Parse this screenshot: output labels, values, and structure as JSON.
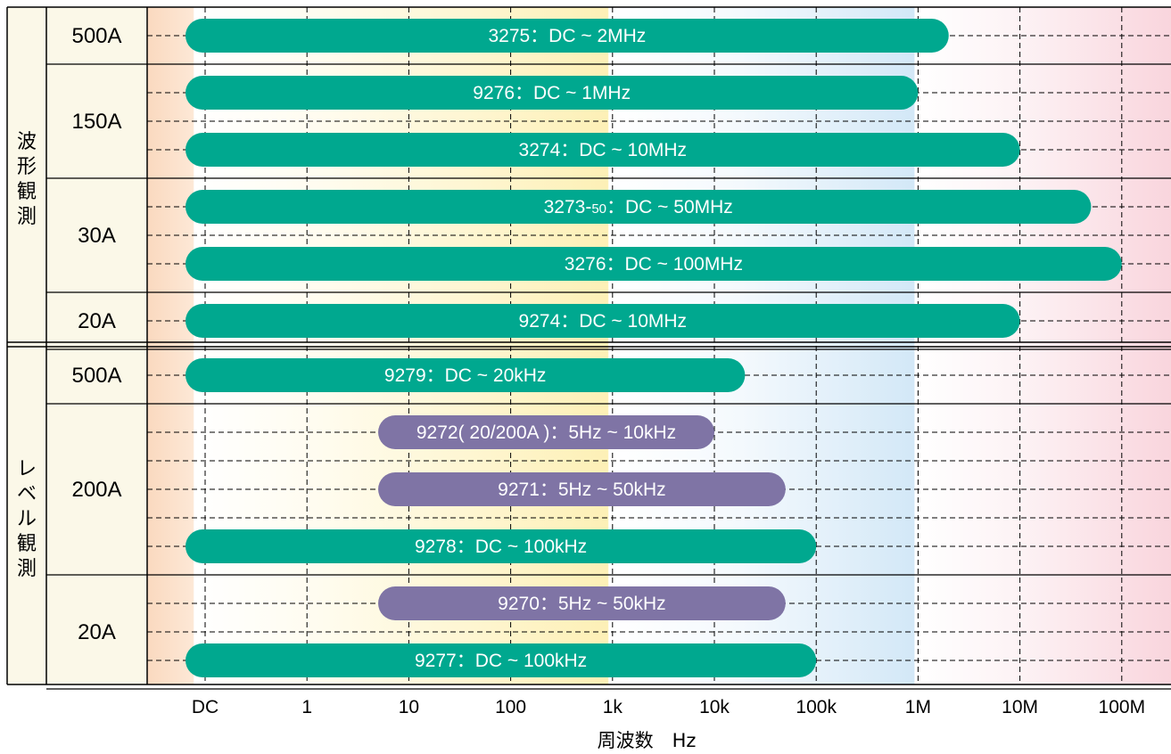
{
  "chart_data": {
    "type": "range-bar",
    "xlabel": "周波数　Hz",
    "xscale": "log",
    "x_ticks": [
      "DC",
      "1",
      "10",
      "100",
      "1k",
      "10k",
      "100k",
      "1M",
      "10M",
      "100M"
    ],
    "grid": true,
    "colors": {
      "dc_coupled": "#00a88f",
      "ac_coupled": "#7f74a5"
    },
    "groups": [
      {
        "name": "波形観測",
        "rows": [
          {
            "current": "500A",
            "bars": [
              {
                "label": "3275：DC ~ 2MHz",
                "low": "DC",
                "high": 2000000,
                "kind": "dc_coupled"
              }
            ]
          },
          {
            "current": "150A",
            "bars": [
              {
                "label": "9276：DC ~ 1MHz",
                "low": "DC",
                "high": 1000000,
                "kind": "dc_coupled"
              },
              {
                "label": "3274：DC ~ 10MHz",
                "low": "DC",
                "high": 10000000,
                "kind": "dc_coupled"
              }
            ]
          },
          {
            "current": "30A",
            "bars": [
              {
                "label": "3273-",
                "label_sub": "50",
                "label_rest": "：DC ~ 50MHz",
                "low": "DC",
                "high": 50000000,
                "kind": "dc_coupled"
              },
              {
                "label": "3276：DC ~ 100MHz",
                "low": "DC",
                "high": 100000000,
                "kind": "dc_coupled"
              }
            ]
          },
          {
            "current": "20A",
            "bars": [
              {
                "label": "9274：DC ~ 10MHz",
                "low": "DC",
                "high": 10000000,
                "kind": "dc_coupled"
              }
            ]
          }
        ]
      },
      {
        "name": "レベル観測",
        "rows": [
          {
            "current": "500A",
            "bars": [
              {
                "label": "9279：DC ~ 20kHz",
                "low": "DC",
                "high": 20000,
                "kind": "dc_coupled"
              }
            ]
          },
          {
            "current": "200A",
            "bars": [
              {
                "label": "9272( 20/200A )：5Hz ~ 10kHz",
                "low": 5,
                "high": 10000,
                "kind": "ac_coupled"
              },
              {
                "label": "9271：5Hz ~ 50kHz",
                "low": 5,
                "high": 50000,
                "kind": "ac_coupled"
              },
              {
                "label": "9278：DC ~ 100kHz",
                "low": "DC",
                "high": 100000,
                "kind": "dc_coupled"
              }
            ]
          },
          {
            "current": "20A",
            "bars": [
              {
                "label": "9270：5Hz ~ 50kHz",
                "low": 5,
                "high": 50000,
                "kind": "ac_coupled"
              },
              {
                "label": "9277：DC ~ 100kHz",
                "low": "DC",
                "high": 100000,
                "kind": "dc_coupled"
              }
            ]
          }
        ]
      }
    ]
  }
}
